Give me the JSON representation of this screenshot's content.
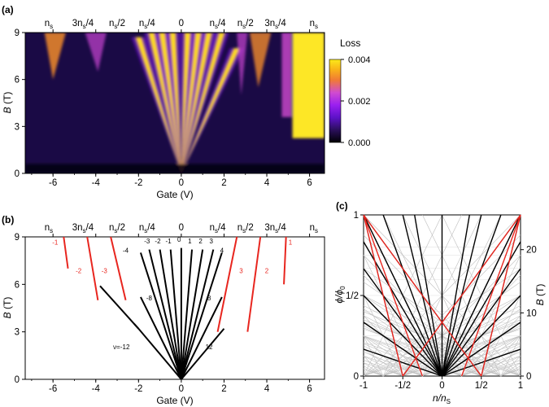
{
  "panels": {
    "a": "(a)",
    "b": "(b)",
    "c": "(c)"
  },
  "colors": {
    "lower_lines": "#000000",
    "upper_lines": "#e8261f",
    "grid_lines": "#bdbdbd",
    "cmap": [
      "#000004",
      "#2a0f5a",
      "#5d12c8",
      "#9a1ff0",
      "#d04bd0",
      "#f07a36",
      "#f9b418",
      "#fcea1a"
    ]
  },
  "chart_data": [
    {
      "type": "heatmap",
      "panel": "(a)",
      "xlabel": "Gate (V)",
      "ylabel_main": "B",
      "ylabel_unit": "(T)",
      "xlim": [
        -7.3,
        6.7
      ],
      "ylim": [
        0,
        9
      ],
      "x_ticks": [
        "-6",
        "-4",
        "-2",
        "0",
        "2",
        "4",
        "6"
      ],
      "y_ticks": [
        "0",
        "3",
        "6",
        "9"
      ],
      "top_axis": [
        "n_s",
        "3n_s/4",
        "n_s/2",
        "n_s/4",
        "0",
        "n_s/4",
        "n_s/2",
        "3n_s/4",
        "n_s"
      ],
      "top_axis_gate_positions": [
        -6.2,
        -4.6,
        -3.0,
        -1.6,
        0,
        1.7,
        3.0,
        4.4,
        6.2
      ],
      "colorbar": {
        "title": "Loss",
        "range": [
          0,
          0.004
        ],
        "ticks": [
          "0.000",
          "0.002",
          "0.004"
        ]
      },
      "fan_lines": [
        {
          "origin": 0,
          "end_gate": -2.0,
          "end_B": 8.7
        },
        {
          "origin": 0,
          "end_gate": -1.4,
          "end_B": 9.0
        },
        {
          "origin": 0,
          "end_gate": -0.9,
          "end_B": 9.0
        },
        {
          "origin": 0,
          "end_gate": -0.4,
          "end_B": 9.0
        },
        {
          "origin": 0,
          "end_gate": 0.3,
          "end_B": 9.0
        },
        {
          "origin": 0,
          "end_gate": 0.8,
          "end_B": 9.0
        },
        {
          "origin": 0,
          "end_gate": 1.3,
          "end_B": 9.0
        },
        {
          "origin": 0,
          "end_gate": 1.9,
          "end_B": 9.0
        },
        {
          "origin": 0,
          "end_gate": 2.6,
          "end_B": 8.0
        }
      ]
    },
    {
      "type": "line",
      "panel": "(b)",
      "xlabel": "Gate (V)",
      "ylabel_main": "B",
      "ylabel_unit": "(T)",
      "xlim": [
        -7.3,
        6.7
      ],
      "ylim": [
        0,
        9
      ],
      "x_ticks": [
        "-6",
        "-4",
        "-2",
        "0",
        "2",
        "4",
        "6"
      ],
      "y_ticks": [
        "0",
        "3",
        "6",
        "9"
      ],
      "top_axis": [
        "n_s",
        "3n_s/4",
        "n_s/2",
        "n_s/4",
        "0",
        "n_s/4",
        "n_s/2",
        "3n_s/4",
        "n_s"
      ],
      "top_axis_gate_positions": [
        -6.2,
        -4.6,
        -3.0,
        -1.6,
        0,
        1.7,
        3.0,
        4.4,
        6.2
      ],
      "lower_fan": [
        {
          "nu": "-4",
          "x": [
            0,
            -1.9
          ],
          "y": [
            0,
            8.0
          ]
        },
        {
          "nu": "-3",
          "x": [
            0,
            -1.5
          ],
          "y": [
            0,
            8.2
          ]
        },
        {
          "nu": "-2",
          "x": [
            0,
            -1.0
          ],
          "y": [
            0,
            8.2
          ]
        },
        {
          "nu": "-1",
          "x": [
            0,
            -0.5
          ],
          "y": [
            0,
            8.2
          ]
        },
        {
          "nu": "0",
          "x": [
            0,
            0.0
          ],
          "y": [
            0,
            8.3
          ]
        },
        {
          "nu": "1",
          "x": [
            0,
            0.5
          ],
          "y": [
            0,
            8.2
          ]
        },
        {
          "nu": "2",
          "x": [
            0,
            1.0
          ],
          "y": [
            0,
            8.2
          ]
        },
        {
          "nu": "3",
          "x": [
            0,
            1.5
          ],
          "y": [
            0,
            8.2
          ]
        },
        {
          "nu": "4",
          "x": [
            0,
            1.9
          ],
          "y": [
            0,
            8.0
          ]
        },
        {
          "nu": "-8",
          "x": [
            0,
            -1.9
          ],
          "y": [
            0,
            5.2
          ]
        },
        {
          "nu": "8",
          "x": [
            0,
            1.9
          ],
          "y": [
            0,
            5.2
          ]
        },
        {
          "nu": "-12",
          "x": [
            0,
            -2.0
          ],
          "y": [
            0,
            3.2
          ]
        },
        {
          "nu": "12",
          "x": [
            0,
            2.0
          ],
          "y": [
            0,
            3.2
          ]
        },
        {
          "nu": "",
          "x": [
            -2.0,
            -3.8
          ],
          "y": [
            3.2,
            5.9
          ]
        },
        {
          "nu": "",
          "x": [
            -2.0,
            -2.2
          ],
          "y": [
            3.2,
            3.5
          ]
        }
      ],
      "lower_fan_labels": [
        {
          "text": "-4",
          "x": -2.6,
          "y": 8.0
        },
        {
          "text": "-3",
          "x": -1.6,
          "y": 8.6
        },
        {
          "text": "-2",
          "x": -1.1,
          "y": 8.6
        },
        {
          "text": "-1",
          "x": -0.6,
          "y": 8.6
        },
        {
          "text": "0",
          "x": -0.1,
          "y": 8.7
        },
        {
          "text": "1",
          "x": 0.4,
          "y": 8.6
        },
        {
          "text": "2",
          "x": 0.9,
          "y": 8.6
        },
        {
          "text": "3",
          "x": 1.4,
          "y": 8.6
        },
        {
          "text": "4",
          "x": 1.9,
          "y": 8.0
        },
        {
          "text": "-8",
          "x": -1.5,
          "y": 5.0
        },
        {
          "text": "8",
          "x": 1.3,
          "y": 5.0
        },
        {
          "text": "ν=-12",
          "x": -2.8,
          "y": 1.9
        },
        {
          "text": "12",
          "x": 1.3,
          "y": 1.9
        }
      ],
      "upper_fan": [
        {
          "nu": "-1",
          "x": [
            -5.3,
            -5.5
          ],
          "y": [
            7.0,
            9.0
          ]
        },
        {
          "nu": "-2",
          "x": [
            -3.9,
            -4.4
          ],
          "y": [
            5.0,
            9.0
          ]
        },
        {
          "nu": "-3",
          "x": [
            -2.6,
            -3.3
          ],
          "y": [
            5.0,
            9.0
          ]
        },
        {
          "nu": "3",
          "x": [
            1.7,
            2.6
          ],
          "y": [
            3.0,
            9.0
          ]
        },
        {
          "nu": "2",
          "x": [
            3.1,
            3.7
          ],
          "y": [
            3.0,
            9.0
          ]
        },
        {
          "nu": "1",
          "x": [
            4.8,
            4.9
          ],
          "y": [
            6.0,
            9.0
          ]
        }
      ],
      "upper_fan_labels": [
        {
          "text": "-1",
          "x": -5.9,
          "y": 8.5
        },
        {
          "text": "-2",
          "x": -4.8,
          "y": 6.7
        },
        {
          "text": "-3",
          "x": -3.6,
          "y": 6.7
        },
        {
          "text": "3",
          "x": 2.8,
          "y": 6.7
        },
        {
          "text": "2",
          "x": 4.0,
          "y": 6.7
        },
        {
          "text": "1",
          "x": 5.1,
          "y": 8.5
        }
      ]
    },
    {
      "type": "line",
      "panel": "(c)",
      "xlabel_main": "n/n",
      "xlabel_sub": "S",
      "ylabel_left_main": "ϕ/ϕ",
      "ylabel_left_sub": "0",
      "ylabel_right_main": "B",
      "ylabel_right_unit": "(T)",
      "xlim": [
        -1,
        1
      ],
      "ylim": [
        0,
        1
      ],
      "x_ticks": [
        "-1",
        "-1/2",
        "0",
        "1/2",
        "1"
      ],
      "y_ticks_left": [
        "0",
        "1/2",
        "1"
      ],
      "y_ticks_right": [
        "0",
        "10",
        "20"
      ],
      "black_fan_slopes": [
        -6,
        -3,
        -2,
        -1.5,
        -1.2,
        -1,
        -0.75,
        -0.5,
        -0.35,
        0,
        0.35,
        0.5,
        0.75,
        1,
        1.2,
        1.5,
        2,
        3,
        6
      ],
      "red_fan_slopes": [
        1,
        1.5,
        3
      ]
    }
  ]
}
